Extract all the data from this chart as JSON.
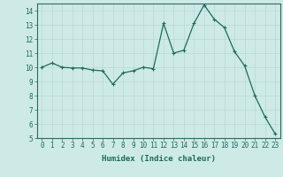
{
  "x": [
    0,
    1,
    2,
    3,
    4,
    5,
    6,
    7,
    8,
    9,
    10,
    11,
    12,
    13,
    14,
    15,
    16,
    17,
    18,
    19,
    20,
    21,
    22,
    23
  ],
  "y": [
    10.0,
    10.3,
    10.0,
    9.95,
    9.95,
    9.8,
    9.75,
    8.8,
    9.6,
    9.75,
    10.0,
    9.9,
    13.1,
    11.0,
    11.2,
    13.1,
    14.4,
    13.4,
    12.8,
    11.1,
    10.1,
    8.0,
    6.5,
    5.3
  ],
  "xlabel": "Humidex (Indice chaleur)",
  "line_color": "#1a6b5e",
  "marker": "+",
  "bg_color": "#ceeae6",
  "grid_color": "#b8d8d4",
  "axis_color": "#2a6b5e",
  "tick_label_color": "#1a6b5e",
  "xlabel_color": "#1a6b5e",
  "ylim": [
    5,
    14.5
  ],
  "yticks": [
    5,
    6,
    7,
    8,
    9,
    10,
    11,
    12,
    13,
    14
  ],
  "xticks": [
    0,
    1,
    2,
    3,
    4,
    5,
    6,
    7,
    8,
    9,
    10,
    11,
    12,
    13,
    14,
    15,
    16,
    17,
    18,
    19,
    20,
    21,
    22,
    23
  ],
  "xtick_labels": [
    "0",
    "1",
    "2",
    "3",
    "4",
    "5",
    "6",
    "7",
    "8",
    "9",
    "10",
    "11",
    "12",
    "13",
    "14",
    "15",
    "16",
    "17",
    "18",
    "19",
    "20",
    "21",
    "22",
    "23"
  ],
  "xlabel_fontsize": 6.5,
  "tick_fontsize": 5.5,
  "linewidth": 0.9,
  "markersize": 2.5
}
